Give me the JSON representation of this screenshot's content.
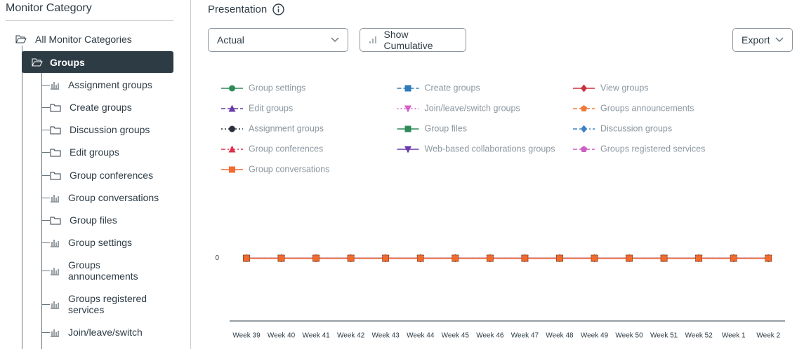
{
  "sidebar": {
    "title": "Monitor Category",
    "root": "All Monitor Categories",
    "selected": "Groups",
    "children": [
      "Assignment groups",
      "Create groups",
      "Discussion groups",
      "Edit groups",
      "Group conferences",
      "Group conversations",
      "Group files",
      "Group settings",
      "Groups announcements",
      "Groups registered services",
      "Join/leave/switch"
    ]
  },
  "toolbar": {
    "title": "Presentation",
    "view": "Actual",
    "cumulative_button": "Show Cumulative",
    "export": "Export"
  },
  "chart_data": {
    "type": "line",
    "categories": [
      "Week 39",
      "Week 40",
      "Week 41",
      "Week 42",
      "Week 43",
      "Week 44",
      "Week 45",
      "Week 46",
      "Week 47",
      "Week 48",
      "Week 49",
      "Week 50",
      "Week 51",
      "Week 52",
      "Week 1",
      "Week 2"
    ],
    "ylim": [
      -1,
      3
    ],
    "yticks": [
      0
    ],
    "series": [
      {
        "name": "Group settings",
        "color": "#2e8b57",
        "marker": "circle",
        "dash": "solid",
        "values": [
          0,
          0,
          0,
          0,
          0,
          0,
          0,
          0,
          0,
          0,
          0,
          0,
          0,
          0,
          0,
          0
        ]
      },
      {
        "name": "Create groups",
        "color": "#2f7ab8",
        "marker": "square",
        "dash": "dashed",
        "values": [
          0,
          0,
          0,
          0,
          0,
          0,
          0,
          0,
          0,
          0,
          0,
          0,
          0,
          0,
          0,
          0
        ]
      },
      {
        "name": "View groups",
        "color": "#c8323c",
        "marker": "diamond",
        "dash": "solid",
        "values": [
          0,
          0,
          0,
          0,
          0,
          0,
          0,
          0,
          0,
          0,
          0,
          0,
          0,
          0,
          0,
          0
        ]
      },
      {
        "name": "Edit groups",
        "color": "#6a3aa8",
        "marker": "triangle-up",
        "dash": "dashed",
        "values": [
          0,
          0,
          0,
          0,
          0,
          0,
          0,
          0,
          0,
          0,
          0,
          0,
          0,
          0,
          0,
          0
        ]
      },
      {
        "name": "Join/leave/switch groups",
        "color": "#d35fc9",
        "marker": "triangle-down",
        "dash": "dotted",
        "values": [
          0,
          0,
          0,
          0,
          0,
          0,
          0,
          0,
          0,
          0,
          0,
          0,
          0,
          0,
          0,
          0
        ]
      },
      {
        "name": "Groups announcements",
        "color": "#f07a3a",
        "marker": "pentagon",
        "dash": "dashed",
        "values": [
          0,
          0,
          0,
          0,
          0,
          0,
          0,
          0,
          0,
          0,
          0,
          0,
          0,
          0,
          0,
          0
        ]
      },
      {
        "name": "Assignment groups",
        "color": "#2b2f3a",
        "marker": "circle",
        "dash": "dotted",
        "values": [
          0,
          0,
          0,
          0,
          0,
          0,
          0,
          0,
          0,
          0,
          0,
          0,
          0,
          0,
          0,
          0
        ]
      },
      {
        "name": "Group files",
        "color": "#2e8b57",
        "marker": "square",
        "dash": "solid",
        "values": [
          0,
          0,
          0,
          0,
          0,
          0,
          0,
          0,
          0,
          0,
          0,
          0,
          0,
          0,
          0,
          0
        ]
      },
      {
        "name": "Discussion groups",
        "color": "#3b82c4",
        "marker": "diamond",
        "dash": "dashdot",
        "values": [
          0,
          0,
          0,
          0,
          0,
          0,
          0,
          0,
          0,
          0,
          0,
          0,
          0,
          0,
          0,
          0
        ]
      },
      {
        "name": "Group conferences",
        "color": "#e0304a",
        "marker": "triangle-up",
        "dash": "dashdot",
        "values": [
          0,
          0,
          0,
          0,
          0,
          0,
          0,
          0,
          0,
          0,
          0,
          0,
          0,
          0,
          0,
          0
        ]
      },
      {
        "name": "Web-based collaborations groups",
        "color": "#6a3aa8",
        "marker": "triangle-down",
        "dash": "solid",
        "values": [
          0,
          0,
          0,
          0,
          0,
          0,
          0,
          0,
          0,
          0,
          0,
          0,
          0,
          0,
          0,
          0
        ]
      },
      {
        "name": "Groups registered services",
        "color": "#cc5fc4",
        "marker": "pentagon",
        "dash": "dashed",
        "values": [
          0,
          0,
          0,
          0,
          0,
          0,
          0,
          0,
          0,
          0,
          0,
          0,
          0,
          0,
          0,
          0
        ]
      },
      {
        "name": "Group conversations",
        "color": "#f26b2e",
        "marker": "square",
        "dash": "solid",
        "values": [
          0,
          0,
          0,
          0,
          0,
          0,
          0,
          0,
          0,
          0,
          0,
          0,
          0,
          0,
          0,
          0
        ]
      }
    ]
  }
}
